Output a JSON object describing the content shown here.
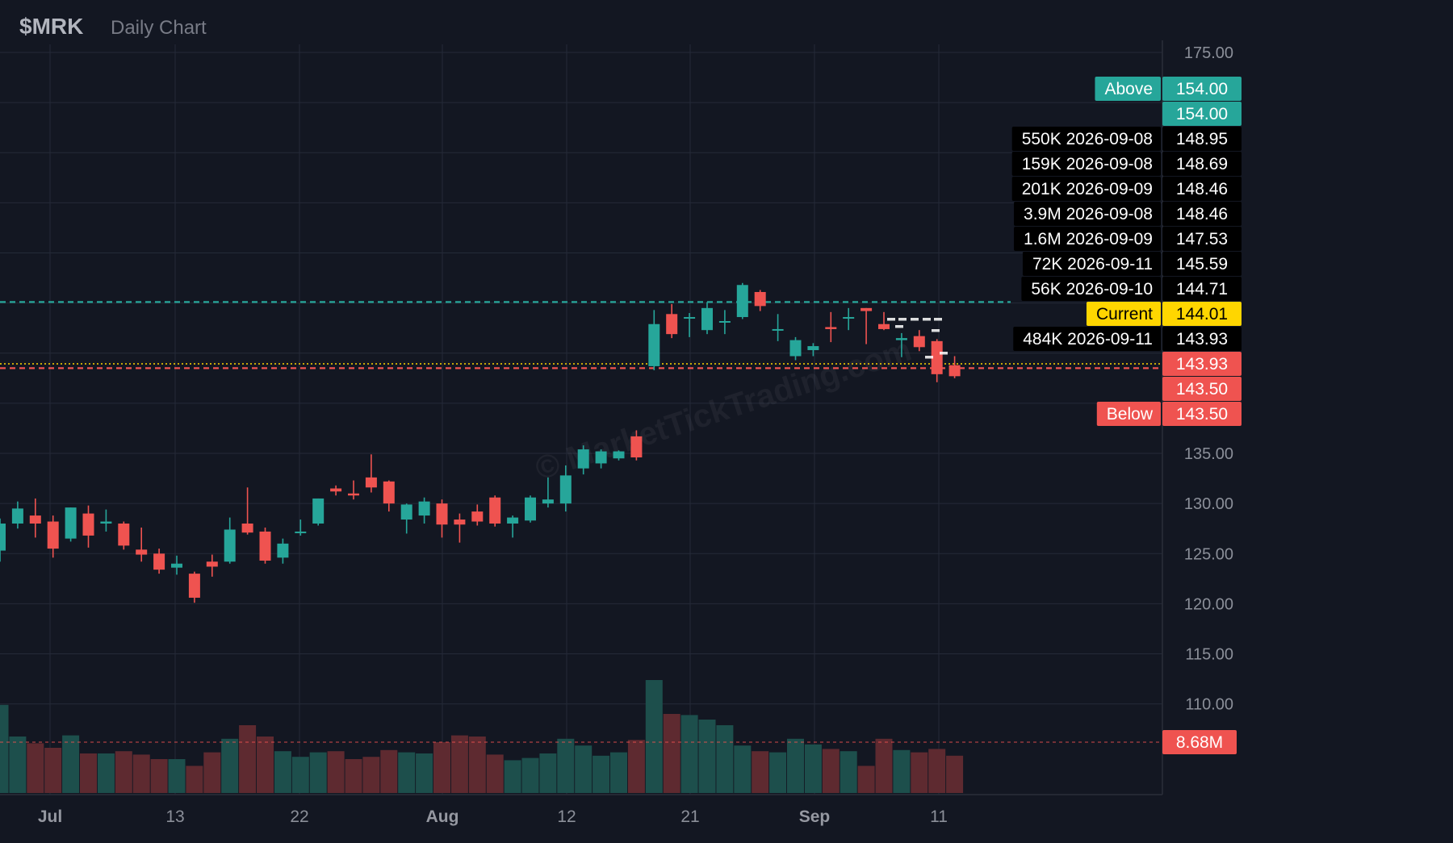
{
  "header": {
    "symbol": "$MRK",
    "subtitle": "Daily Chart"
  },
  "watermark": "© MarketTickTrading.com",
  "colors": {
    "background": "#131722",
    "grid": "#242a38",
    "up": "#26a69a",
    "down": "#ef5350",
    "axis_text": "#8b8f99",
    "current": "#ffd600",
    "label_bg": "#000000"
  },
  "chart_data": {
    "type": "candlestick",
    "price_axis": {
      "ticks": [
        "175.00",
        "135.00",
        "130.00",
        "125.00",
        "120.00",
        "115.00",
        "110.00"
      ],
      "range": [
        104.5,
        175
      ]
    },
    "x_axis": {
      "labels": [
        "Jul",
        "13",
        "22",
        "Aug",
        "12",
        "21",
        "Sep",
        "11"
      ]
    },
    "candles": [
      {
        "o": 125.3,
        "h": 128.5,
        "l": 124.2,
        "c": 128.0
      },
      {
        "o": 128.0,
        "h": 130.2,
        "l": 127.5,
        "c": 129.5
      },
      {
        "o": 128.8,
        "h": 130.5,
        "l": 126.6,
        "c": 128.0
      },
      {
        "o": 128.2,
        "h": 128.8,
        "l": 124.6,
        "c": 125.5
      },
      {
        "o": 126.5,
        "h": 129.6,
        "l": 126.2,
        "c": 129.6
      },
      {
        "o": 129.0,
        "h": 129.8,
        "l": 125.6,
        "c": 126.8
      },
      {
        "o": 128.0,
        "h": 129.4,
        "l": 127.2,
        "c": 128.2
      },
      {
        "o": 128.0,
        "h": 128.2,
        "l": 125.4,
        "c": 125.8
      },
      {
        "o": 125.4,
        "h": 127.6,
        "l": 124.2,
        "c": 124.9
      },
      {
        "o": 125.0,
        "h": 125.5,
        "l": 123.0,
        "c": 123.4
      },
      {
        "o": 123.6,
        "h": 124.8,
        "l": 122.9,
        "c": 124.0
      },
      {
        "o": 123.0,
        "h": 123.2,
        "l": 120.1,
        "c": 120.6
      },
      {
        "o": 124.2,
        "h": 124.9,
        "l": 122.7,
        "c": 123.7
      },
      {
        "o": 124.2,
        "h": 128.6,
        "l": 124.0,
        "c": 127.4
      },
      {
        "o": 128.0,
        "h": 131.6,
        "l": 126.9,
        "c": 127.1
      },
      {
        "o": 127.2,
        "h": 127.6,
        "l": 124.0,
        "c": 124.3
      },
      {
        "o": 124.6,
        "h": 126.5,
        "l": 124.0,
        "c": 126.0
      },
      {
        "o": 127.2,
        "h": 128.4,
        "l": 126.8,
        "c": 127.2
      },
      {
        "o": 128.0,
        "h": 130.5,
        "l": 127.8,
        "c": 130.5
      },
      {
        "o": 131.5,
        "h": 131.8,
        "l": 130.8,
        "c": 131.2
      },
      {
        "o": 131.0,
        "h": 132.3,
        "l": 130.4,
        "c": 130.8
      },
      {
        "o": 132.6,
        "h": 134.9,
        "l": 131.1,
        "c": 131.6
      },
      {
        "o": 132.2,
        "h": 132.3,
        "l": 129.2,
        "c": 130.0
      },
      {
        "o": 128.4,
        "h": 130.0,
        "l": 127.0,
        "c": 129.9
      },
      {
        "o": 128.8,
        "h": 130.6,
        "l": 128.0,
        "c": 130.2
      },
      {
        "o": 130.0,
        "h": 130.4,
        "l": 126.6,
        "c": 127.9
      },
      {
        "o": 128.4,
        "h": 129.0,
        "l": 126.1,
        "c": 127.9
      },
      {
        "o": 129.2,
        "h": 129.9,
        "l": 127.8,
        "c": 128.2
      },
      {
        "o": 130.6,
        "h": 130.8,
        "l": 127.7,
        "c": 128.0
      },
      {
        "o": 128.0,
        "h": 128.8,
        "l": 126.6,
        "c": 128.6
      },
      {
        "o": 128.3,
        "h": 130.8,
        "l": 128.1,
        "c": 130.6
      },
      {
        "o": 130.0,
        "h": 132.6,
        "l": 129.6,
        "c": 130.4
      },
      {
        "o": 130.0,
        "h": 133.8,
        "l": 129.2,
        "c": 132.8
      },
      {
        "o": 133.5,
        "h": 135.8,
        "l": 132.9,
        "c": 135.4
      },
      {
        "o": 134.0,
        "h": 135.4,
        "l": 133.5,
        "c": 135.2
      },
      {
        "o": 134.5,
        "h": 135.3,
        "l": 134.3,
        "c": 135.2
      },
      {
        "o": 136.7,
        "h": 137.3,
        "l": 134.3,
        "c": 134.6
      },
      {
        "o": 143.7,
        "h": 149.3,
        "l": 143.3,
        "c": 147.9
      },
      {
        "o": 148.9,
        "h": 149.9,
        "l": 146.5,
        "c": 146.9
      },
      {
        "o": 148.6,
        "h": 149.0,
        "l": 146.6,
        "c": 148.6
      },
      {
        "o": 147.3,
        "h": 150.1,
        "l": 146.9,
        "c": 149.5
      },
      {
        "o": 148.2,
        "h": 149.3,
        "l": 146.9,
        "c": 148.2
      },
      {
        "o": 148.6,
        "h": 152.0,
        "l": 148.4,
        "c": 151.8
      },
      {
        "o": 151.1,
        "h": 151.3,
        "l": 149.2,
        "c": 149.7
      },
      {
        "o": 147.4,
        "h": 148.9,
        "l": 146.2,
        "c": 147.4
      },
      {
        "o": 144.7,
        "h": 146.6,
        "l": 144.3,
        "c": 146.3
      },
      {
        "o": 145.3,
        "h": 146.0,
        "l": 144.7,
        "c": 145.7
      },
      {
        "o": 147.6,
        "h": 149.1,
        "l": 146.1,
        "c": 147.4
      },
      {
        "o": 148.6,
        "h": 149.5,
        "l": 147.3,
        "c": 148.6
      },
      {
        "o": 149.5,
        "h": 149.5,
        "l": 145.9,
        "c": 149.2
      },
      {
        "o": 147.9,
        "h": 149.1,
        "l": 147.3,
        "c": 147.4
      },
      {
        "o": 146.3,
        "h": 147.0,
        "l": 144.6,
        "c": 146.5
      },
      {
        "o": 146.7,
        "h": 147.3,
        "l": 145.2,
        "c": 145.6
      },
      {
        "o": 146.2,
        "h": 146.4,
        "l": 142.1,
        "c": 142.9
      },
      {
        "o": 143.8,
        "h": 144.7,
        "l": 142.5,
        "c": 142.7
      }
    ],
    "volume_relative": [
      0.78,
      0.5,
      0.44,
      0.4,
      0.51,
      0.35,
      0.35,
      0.37,
      0.34,
      0.3,
      0.3,
      0.24,
      0.36,
      0.48,
      0.6,
      0.5,
      0.37,
      0.32,
      0.36,
      0.37,
      0.3,
      0.32,
      0.38,
      0.36,
      0.35,
      0.45,
      0.51,
      0.5,
      0.34,
      0.29,
      0.31,
      0.35,
      0.48,
      0.42,
      0.33,
      0.36,
      0.47,
      1.0,
      0.7,
      0.69,
      0.65,
      0.6,
      0.42,
      0.37,
      0.36,
      0.48,
      0.43,
      0.39,
      0.37,
      0.24,
      0.48,
      0.38,
      0.36,
      0.39,
      0.33
    ],
    "reference_lines": [
      {
        "price": 150.1,
        "style": "dashed",
        "color": "#26a69a"
      },
      {
        "price": 143.93,
        "style": "dotted",
        "color": "#ffd600"
      },
      {
        "price": 143.5,
        "style": "dashed",
        "color": "#ef5350"
      }
    ],
    "volume_reference": {
      "level": 0.45,
      "style": "dashed",
      "color": "#ef5350"
    },
    "levels": [
      {
        "label": "Above",
        "value": "154.00",
        "kind": "above"
      },
      {
        "label": "",
        "value": "154.00",
        "kind": "above"
      },
      {
        "label": "550K  2026-09-08",
        "value": "148.95",
        "kind": "block"
      },
      {
        "label": "159K  2026-09-08",
        "value": "148.69",
        "kind": "block"
      },
      {
        "label": "201K  2026-09-09",
        "value": "148.46",
        "kind": "block"
      },
      {
        "label": "3.9M  2026-09-08",
        "value": "148.46",
        "kind": "block"
      },
      {
        "label": "1.6M  2026-09-09",
        "value": "147.53",
        "kind": "block"
      },
      {
        "label": "72K  2026-09-11",
        "value": "145.59",
        "kind": "block"
      },
      {
        "label": "56K  2026-09-10",
        "value": "144.71",
        "kind": "block"
      },
      {
        "label": "Current",
        "value": "144.01",
        "kind": "current"
      },
      {
        "label": "484K  2026-09-11",
        "value": "143.93",
        "kind": "block"
      },
      {
        "label": "",
        "value": "143.93",
        "kind": "below"
      },
      {
        "label": "",
        "value": "143.50",
        "kind": "below"
      },
      {
        "label": "Below",
        "value": "143.50",
        "kind": "below"
      }
    ],
    "volume_label": "8.68M"
  }
}
